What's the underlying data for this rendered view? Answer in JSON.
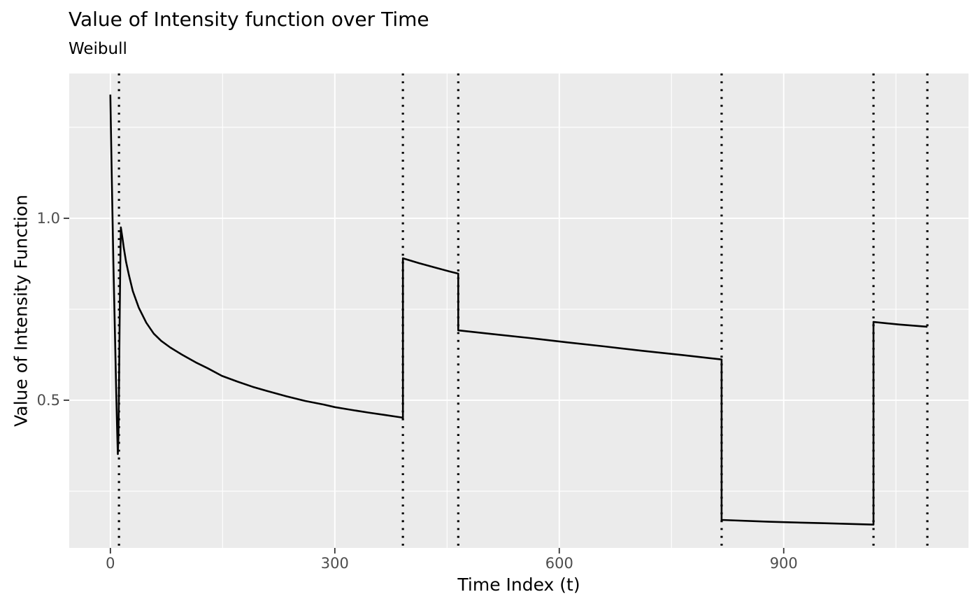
{
  "chart_data": {
    "type": "line",
    "title": "Value of Intensity function over Time",
    "subtitle": "Weibull",
    "xlabel": "Time Index (t)",
    "ylabel": "Value of Intensity Function",
    "xlim": [
      -55,
      1147
    ],
    "ylim": [
      0.094,
      1.398
    ],
    "grid": true,
    "legend_position": "none",
    "x_ticks": [
      {
        "value": 0,
        "label": "0"
      },
      {
        "value": 300,
        "label": "300"
      },
      {
        "value": 600,
        "label": "600"
      },
      {
        "value": 900,
        "label": "900"
      }
    ],
    "x_minor_ticks": [
      150,
      450,
      750,
      1050
    ],
    "y_ticks": [
      {
        "value": 0.5,
        "label": "0.5"
      },
      {
        "value": 1.0,
        "label": "1.0"
      }
    ],
    "y_minor_ticks": [
      0.25,
      0.75,
      1.25
    ],
    "event_times": [
      11.5,
      391,
      465,
      817,
      1020,
      1092
    ],
    "series": [
      {
        "name": "intensity",
        "points": [
          [
            0,
            1.34
          ],
          [
            1,
            1.215
          ],
          [
            2,
            1.095
          ],
          [
            3,
            0.985
          ],
          [
            4,
            0.88
          ],
          [
            5,
            0.785
          ],
          [
            6,
            0.69
          ],
          [
            7,
            0.6
          ],
          [
            8,
            0.505
          ],
          [
            9,
            0.42
          ],
          [
            10,
            0.352
          ],
          [
            10.8,
            0.4
          ],
          [
            11.5,
            0.52
          ],
          [
            12.3,
            0.7
          ],
          [
            13.2,
            0.87
          ],
          [
            14,
            0.975
          ],
          [
            16,
            0.947
          ],
          [
            18,
            0.918
          ],
          [
            21,
            0.88
          ],
          [
            25,
            0.842
          ],
          [
            30,
            0.8
          ],
          [
            38,
            0.754
          ],
          [
            48,
            0.713
          ],
          [
            58,
            0.683
          ],
          [
            68,
            0.663
          ],
          [
            80,
            0.645
          ],
          [
            95,
            0.626
          ],
          [
            114,
            0.604
          ],
          [
            130,
            0.588
          ],
          [
            149,
            0.567
          ],
          [
            170,
            0.551
          ],
          [
            190,
            0.537
          ],
          [
            210,
            0.525
          ],
          [
            235,
            0.511
          ],
          [
            260,
            0.498
          ],
          [
            285,
            0.488
          ],
          [
            300,
            0.481
          ],
          [
            320,
            0.474
          ],
          [
            345,
            0.466
          ],
          [
            368,
            0.459
          ],
          [
            391,
            0.452
          ],
          [
            391,
            0.89
          ],
          [
            412,
            0.877
          ],
          [
            435,
            0.864
          ],
          [
            455,
            0.853
          ],
          [
            465,
            0.848
          ],
          [
            465,
            0.692
          ],
          [
            510,
            0.682
          ],
          [
            560,
            0.671
          ],
          [
            610,
            0.659
          ],
          [
            660,
            0.648
          ],
          [
            710,
            0.636
          ],
          [
            765,
            0.624
          ],
          [
            817,
            0.612
          ],
          [
            817,
            0.171
          ],
          [
            880,
            0.166
          ],
          [
            950,
            0.162
          ],
          [
            1020,
            0.158
          ],
          [
            1020,
            0.715
          ],
          [
            1055,
            0.708
          ],
          [
            1092,
            0.702
          ]
        ]
      }
    ],
    "colors": {
      "panel_background": "#EBEBEB",
      "gridline": "#FFFFFF",
      "line": "#000000",
      "event_line": "#000000",
      "tick_mark": "#333333",
      "tick_label": "#4D4D4D",
      "text": "#000000"
    }
  }
}
